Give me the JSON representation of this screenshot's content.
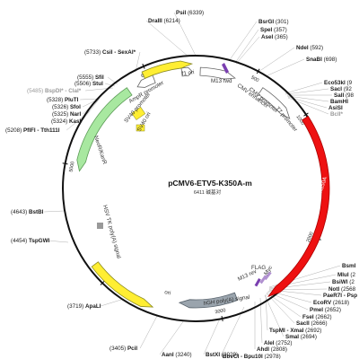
{
  "plasmid": {
    "name": "pCMV6-ETV5-K350A-m",
    "size_label": "6411 碱基对",
    "total_bp": 6411
  },
  "colors": {
    "backbone": "#111111",
    "etv5": "#ee1111",
    "ori": "#ffee33",
    "ori_stroke": "#8a8a22",
    "neo": "#a8e8a0",
    "neo_stroke": "#5a9a55",
    "promoter": "#ffffff",
    "promoter_stroke": "#666666",
    "polya": "#9aa4ad",
    "polya_stroke": "#55606a",
    "tags": "#b090d0",
    "primer": "#7a3fb0",
    "small_box": "#999999"
  },
  "ticks": [
    {
      "label": "500",
      "pos": 500
    },
    {
      "label": "1000",
      "pos": 1000
    },
    {
      "label": "2000",
      "pos": 2000
    },
    {
      "label": "3000",
      "pos": 3000
    },
    {
      "label": "4000",
      "pos": 4000
    },
    {
      "label": "5000",
      "pos": 5000
    },
    {
      "label": "6000",
      "pos": 6000
    }
  ],
  "features": [
    {
      "name": "ETV5-K350A",
      "type": "cds",
      "start": 1020,
      "end": 2600,
      "strand": 1,
      "color_key": "etv5"
    },
    {
      "name": "CMV promoter",
      "type": "promoter",
      "start": 40,
      "end": 350,
      "strand": 1,
      "color_key": "promoter"
    },
    {
      "name": "T7 promoter",
      "type": "promoter",
      "start": 600,
      "end": 950,
      "strand": 1,
      "color_key": "promoter"
    },
    {
      "name": "CMV enhancer",
      "type": "promoter",
      "start": 6290,
      "end": 6380,
      "strand": 1,
      "color_key": "promoter"
    },
    {
      "name": "hGH poly(A) signal",
      "type": "polya",
      "start": 2840,
      "end": 3350,
      "strand": 1,
      "color_key": "polya"
    },
    {
      "name": "ori",
      "type": "ori",
      "start": 3560,
      "end": 4150,
      "strand": -1,
      "color_key": "ori"
    },
    {
      "name": "NeoR/KanR",
      "type": "cds",
      "start": 4960,
      "end": 5800,
      "strand": -1,
      "color_key": "neo"
    },
    {
      "name": "AmpR promoter",
      "type": "promoter",
      "start": 5880,
      "end": 6040,
      "strand": -1,
      "color_key": "promoter"
    },
    {
      "name": "f1 ori",
      "type": "ori",
      "start": 5970,
      "end": 6380,
      "strand": 1,
      "color_key": "ori"
    }
  ],
  "inner_labels": [
    {
      "name": "M13 fwd"
    },
    {
      "name": "SV40 promoter"
    },
    {
      "name": "SV40 ori"
    },
    {
      "name": "HSV TK poly(A) signal"
    },
    {
      "name": "M13 rev"
    },
    {
      "name": "FLAG"
    },
    {
      "name": "Myc"
    }
  ],
  "sites": [
    {
      "name": "PsiI",
      "pos": "(6339)",
      "gray": false
    },
    {
      "name": "DraIII",
      "pos": "(6214)",
      "gray": false
    },
    {
      "name": "BsrGI",
      "pos": "(301)",
      "gray": false
    },
    {
      "name": "SpeI",
      "pos": "(357)",
      "gray": false
    },
    {
      "name": "AseI",
      "pos": "(365)",
      "gray": false
    },
    {
      "name": "NdeI",
      "pos": "(592)",
      "gray": false
    },
    {
      "name": "SnaBI",
      "pos": "(698)",
      "gray": false
    },
    {
      "name": "Eco53kI",
      "pos": "(9",
      "gray": false
    },
    {
      "name": "SacI",
      "pos": "(92",
      "gray": false
    },
    {
      "name": "SalI",
      "pos": "(98",
      "gray": false
    },
    {
      "name": "BamHI",
      "pos": "",
      "gray": false
    },
    {
      "name": "AsiSI",
      "pos": "",
      "gray": false
    },
    {
      "name": "BclI*",
      "pos": "",
      "gray": true
    },
    {
      "name": "CsiI - SexAI*",
      "pos": "(5733)",
      "gray": false
    },
    {
      "name": "SfiI",
      "pos": "(5555)",
      "gray": false
    },
    {
      "name": "StuI",
      "pos": "(5506)",
      "gray": false
    },
    {
      "name": "BspDI* - ClaI*",
      "pos": "(5485)",
      "gray": true
    },
    {
      "name": "PluTI",
      "pos": "(5328)",
      "gray": false
    },
    {
      "name": "SfoI",
      "pos": "(5326)",
      "gray": false
    },
    {
      "name": "NarI",
      "pos": "(5325)",
      "gray": false
    },
    {
      "name": "KasI",
      "pos": "(5324)",
      "gray": false
    },
    {
      "name": "PflFI - Tth111I",
      "pos": "(5208)",
      "gray": false
    },
    {
      "name": "BstBI",
      "pos": "(4643)",
      "gray": false
    },
    {
      "name": "TspGWI",
      "pos": "(4454)",
      "gray": false
    },
    {
      "name": "ApaLI",
      "pos": "(3719)",
      "gray": false
    },
    {
      "name": "PciI",
      "pos": "(3405)",
      "gray": false
    },
    {
      "name": "AanI",
      "pos": "(3240)",
      "gray": false
    },
    {
      "name": "BstXI",
      "pos": "(3029)",
      "gray": false
    },
    {
      "name": "BsmI",
      "pos": "",
      "gray": false
    },
    {
      "name": "MluI",
      "pos": "(2",
      "gray": false
    },
    {
      "name": "BsiWI",
      "pos": "(2",
      "gray": false
    },
    {
      "name": "NotI",
      "pos": "(2568",
      "gray": false
    },
    {
      "name": "PaeR7I - Psp",
      "pos": "",
      "gray": false
    },
    {
      "name": "EcoRV",
      "pos": "(2618)",
      "gray": false
    },
    {
      "name": "PmeI",
      "pos": "(2652)",
      "gray": false
    },
    {
      "name": "FseI",
      "pos": "(2662)",
      "gray": false
    },
    {
      "name": "SacII",
      "pos": "(2666)",
      "gray": false
    },
    {
      "name": "TspMI - XmaI",
      "pos": "(2692)",
      "gray": false
    },
    {
      "name": "SmaI",
      "pos": "(2694)",
      "gray": false
    },
    {
      "name": "AleI",
      "pos": "(2752)",
      "gray": false
    },
    {
      "name": "AhdI",
      "pos": "(2808)",
      "gray": false
    },
    {
      "name": "BbvCI - Bpu10I",
      "pos": "(2978)",
      "gray": false
    }
  ]
}
